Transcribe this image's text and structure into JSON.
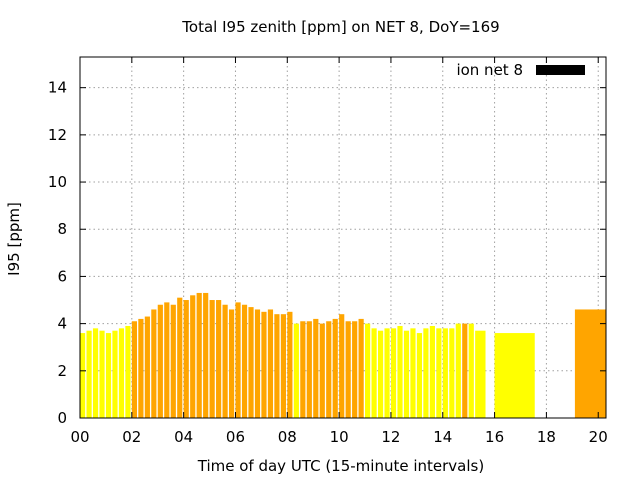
{
  "chart_data": {
    "type": "bar",
    "title": "Total I95 zenith [ppm] on NET 8, DoY=169",
    "xlabel": "Time of day UTC (15-minute intervals)",
    "ylabel": "I95 [ppm]",
    "xlim": [
      0,
      20.3
    ],
    "ylim": [
      0,
      15.3
    ],
    "xticks": [
      0,
      2,
      4,
      6,
      8,
      10,
      12,
      14,
      16,
      18,
      20
    ],
    "xtick_labels": [
      "00",
      "02",
      "04",
      "06",
      "08",
      "10",
      "12",
      "14",
      "16",
      "18",
      "20"
    ],
    "yticks": [
      0,
      2,
      4,
      6,
      8,
      10,
      12,
      14
    ],
    "ytick_labels": [
      "0",
      "2",
      "4",
      "6",
      "8",
      "10",
      "12",
      "14"
    ],
    "grid": true,
    "legend": {
      "position": "top-right",
      "label": "ion net 8",
      "color": "#000000"
    },
    "colors": {
      "yellow": "#ffff00",
      "orange": "#ffa500"
    },
    "bars": [
      {
        "x0": 0.0,
        "x1": 0.2,
        "y": 3.6,
        "color": "yellow"
      },
      {
        "x0": 0.25,
        "x1": 0.45,
        "y": 3.7,
        "color": "yellow"
      },
      {
        "x0": 0.5,
        "x1": 0.7,
        "y": 3.8,
        "color": "yellow"
      },
      {
        "x0": 0.75,
        "x1": 0.95,
        "y": 3.7,
        "color": "yellow"
      },
      {
        "x0": 1.0,
        "x1": 1.2,
        "y": 3.6,
        "color": "yellow"
      },
      {
        "x0": 1.25,
        "x1": 1.45,
        "y": 3.7,
        "color": "yellow"
      },
      {
        "x0": 1.5,
        "x1": 1.7,
        "y": 3.8,
        "color": "yellow"
      },
      {
        "x0": 1.75,
        "x1": 1.95,
        "y": 3.9,
        "color": "yellow"
      },
      {
        "x0": 2.0,
        "x1": 2.2,
        "y": 4.1,
        "color": "orange"
      },
      {
        "x0": 2.25,
        "x1": 2.45,
        "y": 4.2,
        "color": "orange"
      },
      {
        "x0": 2.5,
        "x1": 2.7,
        "y": 4.3,
        "color": "orange"
      },
      {
        "x0": 2.75,
        "x1": 2.95,
        "y": 4.6,
        "color": "orange"
      },
      {
        "x0": 3.0,
        "x1": 3.2,
        "y": 4.8,
        "color": "orange"
      },
      {
        "x0": 3.25,
        "x1": 3.45,
        "y": 4.9,
        "color": "orange"
      },
      {
        "x0": 3.5,
        "x1": 3.7,
        "y": 4.8,
        "color": "orange"
      },
      {
        "x0": 3.75,
        "x1": 3.95,
        "y": 5.1,
        "color": "orange"
      },
      {
        "x0": 4.0,
        "x1": 4.2,
        "y": 5.0,
        "color": "orange"
      },
      {
        "x0": 4.25,
        "x1": 4.45,
        "y": 5.2,
        "color": "orange"
      },
      {
        "x0": 4.5,
        "x1": 4.7,
        "y": 5.3,
        "color": "orange"
      },
      {
        "x0": 4.75,
        "x1": 4.95,
        "y": 5.3,
        "color": "orange"
      },
      {
        "x0": 5.0,
        "x1": 5.2,
        "y": 5.0,
        "color": "orange"
      },
      {
        "x0": 5.25,
        "x1": 5.45,
        "y": 5.0,
        "color": "orange"
      },
      {
        "x0": 5.5,
        "x1": 5.7,
        "y": 4.8,
        "color": "orange"
      },
      {
        "x0": 5.75,
        "x1": 5.95,
        "y": 4.6,
        "color": "orange"
      },
      {
        "x0": 6.0,
        "x1": 6.2,
        "y": 4.9,
        "color": "orange"
      },
      {
        "x0": 6.25,
        "x1": 6.45,
        "y": 4.8,
        "color": "orange"
      },
      {
        "x0": 6.5,
        "x1": 6.7,
        "y": 4.7,
        "color": "orange"
      },
      {
        "x0": 6.75,
        "x1": 6.95,
        "y": 4.6,
        "color": "orange"
      },
      {
        "x0": 7.0,
        "x1": 7.2,
        "y": 4.5,
        "color": "orange"
      },
      {
        "x0": 7.25,
        "x1": 7.45,
        "y": 4.6,
        "color": "orange"
      },
      {
        "x0": 7.5,
        "x1": 7.7,
        "y": 4.4,
        "color": "orange"
      },
      {
        "x0": 7.75,
        "x1": 7.95,
        "y": 4.4,
        "color": "orange"
      },
      {
        "x0": 8.0,
        "x1": 8.2,
        "y": 4.5,
        "color": "orange"
      },
      {
        "x0": 8.25,
        "x1": 8.45,
        "y": 4.0,
        "color": "yellow"
      },
      {
        "x0": 8.5,
        "x1": 8.7,
        "y": 4.1,
        "color": "orange"
      },
      {
        "x0": 8.75,
        "x1": 8.95,
        "y": 4.1,
        "color": "orange"
      },
      {
        "x0": 9.0,
        "x1": 9.2,
        "y": 4.2,
        "color": "orange"
      },
      {
        "x0": 9.25,
        "x1": 9.45,
        "y": 4.0,
        "color": "orange"
      },
      {
        "x0": 9.5,
        "x1": 9.7,
        "y": 4.1,
        "color": "orange"
      },
      {
        "x0": 9.75,
        "x1": 9.95,
        "y": 4.2,
        "color": "orange"
      },
      {
        "x0": 10.0,
        "x1": 10.2,
        "y": 4.4,
        "color": "orange"
      },
      {
        "x0": 10.25,
        "x1": 10.45,
        "y": 4.1,
        "color": "orange"
      },
      {
        "x0": 10.5,
        "x1": 10.7,
        "y": 4.1,
        "color": "orange"
      },
      {
        "x0": 10.75,
        "x1": 10.95,
        "y": 4.2,
        "color": "orange"
      },
      {
        "x0": 11.0,
        "x1": 11.2,
        "y": 4.0,
        "color": "yellow"
      },
      {
        "x0": 11.25,
        "x1": 11.45,
        "y": 3.8,
        "color": "yellow"
      },
      {
        "x0": 11.5,
        "x1": 11.7,
        "y": 3.7,
        "color": "yellow"
      },
      {
        "x0": 11.75,
        "x1": 11.95,
        "y": 3.8,
        "color": "yellow"
      },
      {
        "x0": 12.0,
        "x1": 12.2,
        "y": 3.8,
        "color": "yellow"
      },
      {
        "x0": 12.25,
        "x1": 12.45,
        "y": 3.9,
        "color": "yellow"
      },
      {
        "x0": 12.5,
        "x1": 12.7,
        "y": 3.7,
        "color": "yellow"
      },
      {
        "x0": 12.75,
        "x1": 12.95,
        "y": 3.8,
        "color": "yellow"
      },
      {
        "x0": 13.0,
        "x1": 13.2,
        "y": 3.6,
        "color": "yellow"
      },
      {
        "x0": 13.25,
        "x1": 13.45,
        "y": 3.8,
        "color": "yellow"
      },
      {
        "x0": 13.5,
        "x1": 13.7,
        "y": 3.9,
        "color": "yellow"
      },
      {
        "x0": 13.75,
        "x1": 13.95,
        "y": 3.8,
        "color": "yellow"
      },
      {
        "x0": 14.0,
        "x1": 14.2,
        "y": 3.8,
        "color": "yellow"
      },
      {
        "x0": 14.25,
        "x1": 14.45,
        "y": 3.8,
        "color": "yellow"
      },
      {
        "x0": 14.5,
        "x1": 14.7,
        "y": 4.0,
        "color": "yellow"
      },
      {
        "x0": 14.75,
        "x1": 14.95,
        "y": 4.0,
        "color": "orange"
      },
      {
        "x0": 15.0,
        "x1": 15.2,
        "y": 4.0,
        "color": "yellow"
      },
      {
        "x0": 15.25,
        "x1": 15.65,
        "y": 3.7,
        "color": "yellow"
      },
      {
        "x0": 16.0,
        "x1": 17.55,
        "y": 3.6,
        "color": "yellow"
      },
      {
        "x0": 19.1,
        "x1": 20.3,
        "y": 4.6,
        "color": "orange"
      }
    ]
  }
}
